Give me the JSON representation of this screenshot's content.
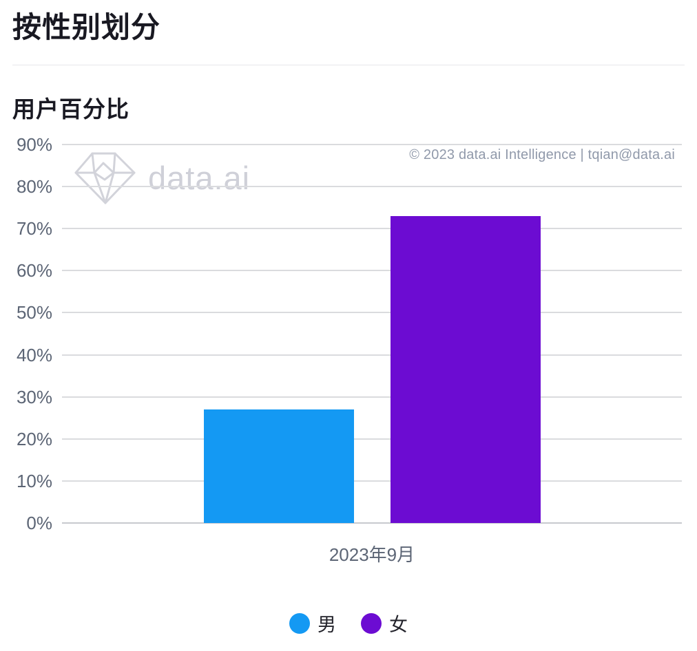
{
  "header": {
    "title": "按性别划分"
  },
  "chart": {
    "subtitle": "用户百分比",
    "watermark_text": "data.ai",
    "watermark_icon": "gem-icon",
    "attribution": "© 2023 data.ai Intelligence | tqian@data.ai"
  },
  "chart_data": {
    "type": "bar",
    "title": "用户百分比",
    "categories": [
      "2023年9月"
    ],
    "series": [
      {
        "name": "男",
        "values": [
          27
        ],
        "color": "#1499f3"
      },
      {
        "name": "女",
        "values": [
          73
        ],
        "color": "#6c0cd2"
      }
    ],
    "xlabel": "",
    "ylabel": "",
    "ylim": [
      0,
      90
    ],
    "ytick_step": 10,
    "ytick_suffix": "%",
    "grid": true,
    "legend_position": "bottom"
  },
  "colors": {
    "bar_male": "#1499f3",
    "bar_female": "#6c0cd2",
    "axis_label": "#5c6575",
    "attribution_text": "#9099aa",
    "watermark": "#cfd0d8",
    "gridline": "#dadbde",
    "baseline": "#c7c9ce",
    "title_text": "#191922",
    "background": "#ffffff"
  }
}
